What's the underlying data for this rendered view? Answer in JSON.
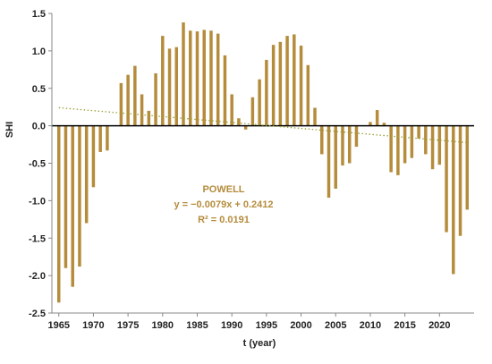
{
  "chart_data": {
    "type": "bar",
    "title": "",
    "xlabel": "t (year)",
    "ylabel": "SHI",
    "xlim": [
      1964,
      2025
    ],
    "ylim": [
      -2.5,
      1.5
    ],
    "x_ticks": [
      1965,
      1970,
      1975,
      1980,
      1985,
      1990,
      1995,
      2000,
      2005,
      2010,
      2015,
      2020
    ],
    "y_ticks": [
      -2.5,
      -2.0,
      -1.5,
      -1.0,
      -0.5,
      0.0,
      0.5,
      1.0,
      1.5
    ],
    "y_tick_labels": [
      "-2.5",
      "-2.0",
      "-1.5",
      "-1.0",
      "-0.5",
      "0.0",
      "0.5",
      "1.0",
      "1.5"
    ],
    "grid": false,
    "bar_color": "#b58c3c",
    "trend_color": "#9aa03a",
    "annotation": {
      "name": "POWELL",
      "equation": "y = −0.0079x + 0.2412",
      "r2": "R² = 0.0191"
    },
    "trendline": {
      "slope": -0.0079,
      "intercept": 0.2412,
      "x_origin": 1965
    },
    "series": [
      {
        "x": [
          1965,
          1966,
          1967,
          1968,
          1969,
          1970,
          1971,
          1972,
          1973,
          1974,
          1975,
          1976,
          1977,
          1978,
          1979,
          1980,
          1981,
          1982,
          1983,
          1984,
          1985,
          1986,
          1987,
          1988,
          1989,
          1990,
          1991,
          1992,
          1993,
          1994,
          1995,
          1996,
          1997,
          1998,
          1999,
          2000,
          2001,
          2002,
          2003,
          2004,
          2005,
          2006,
          2007,
          2008,
          2009,
          2010,
          2011,
          2012,
          2013,
          2014,
          2015,
          2016,
          2017,
          2018,
          2019,
          2020,
          2021,
          2022,
          2023,
          2024
        ],
        "values": [
          -2.36,
          -1.9,
          -2.15,
          -1.88,
          -1.3,
          -0.82,
          -0.35,
          -0.33,
          0.0,
          0.57,
          0.68,
          0.8,
          0.42,
          0.2,
          0.7,
          1.2,
          1.03,
          1.05,
          1.38,
          1.27,
          1.26,
          1.28,
          1.27,
          1.23,
          0.94,
          0.42,
          0.1,
          -0.05,
          0.38,
          0.62,
          0.88,
          1.08,
          1.12,
          1.2,
          1.22,
          1.07,
          0.81,
          0.24,
          -0.38,
          -0.96,
          -0.84,
          -0.53,
          -0.5,
          -0.28,
          0.0,
          0.05,
          0.21,
          0.04,
          -0.62,
          -0.66,
          -0.5,
          -0.43,
          -0.17,
          -0.38,
          -0.58,
          -0.52,
          -1.42,
          -1.98,
          -1.47,
          -1.12
        ]
      }
    ]
  }
}
